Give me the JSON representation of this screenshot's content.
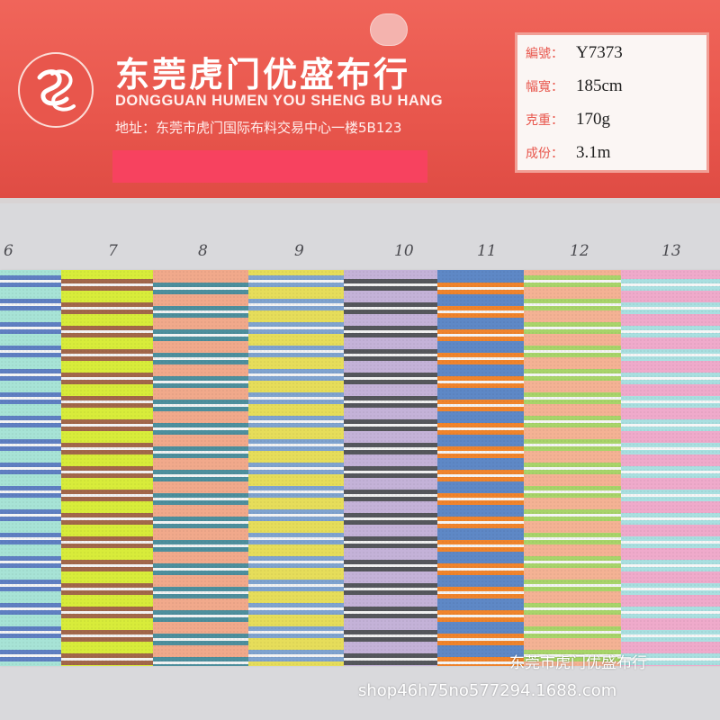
{
  "header": {
    "company_cn": "东莞虎门优盛布行",
    "company_en": "DONGGUAN HUMEN YOU SHENG BU HANG",
    "address": "地址：东莞市虎门国际布料交易中心一楼5B123"
  },
  "specs": [
    {
      "label": "編號：",
      "value": "Y7373"
    },
    {
      "label": "幅寬：",
      "value": "185cm"
    },
    {
      "label": "克重：",
      "value": "170g"
    },
    {
      "label": "成份：",
      "value": "3.1m"
    }
  ],
  "swatch_numbers": [
    "6",
    "7",
    "8",
    "9",
    "10",
    "11",
    "12",
    "13"
  ],
  "swatches": [
    {
      "base": "#a7e3d6",
      "stripes": [
        "#5f7fc2",
        "#f4f4f4",
        "#5f7fc2"
      ]
    },
    {
      "base": "#d8ec3a",
      "stripes": [
        "#a2674a",
        "#f2f2f2",
        "#a2674a"
      ]
    },
    {
      "base": "#f1a98b",
      "stripes": [
        "#4d8f9d",
        "#f2f2f2",
        "#4d8f9d"
      ]
    },
    {
      "base": "#e6dd5a",
      "stripes": [
        "#7fa3cf",
        "#f2f2f2",
        "#7fa3cf"
      ]
    },
    {
      "base": "#c4b2d8",
      "stripes": [
        "#55575c",
        "#f0f0f0",
        "#55575c"
      ]
    },
    {
      "base": "#5e88c6",
      "stripes": [
        "#f0842c",
        "#f4f4f4",
        "#f0842c"
      ]
    },
    {
      "base": "#f4b294",
      "stripes": [
        "#a8d46a",
        "#f4f4f4",
        "#a8d46a"
      ]
    },
    {
      "base": "#efaacb",
      "stripes": [
        "#a9dfe0",
        "#f6f6f6",
        "#a9dfe0"
      ]
    }
  ],
  "watermark": {
    "shop_cn": "东莞市虎门优盛布行",
    "url": "shop46h75no577294.1688.com"
  }
}
